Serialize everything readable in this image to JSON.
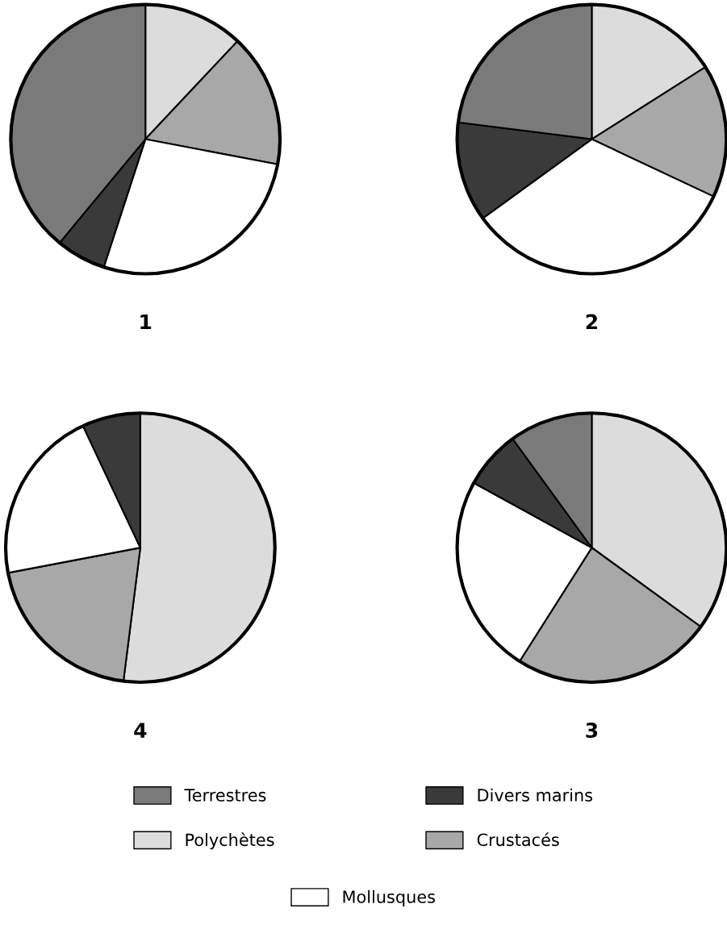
{
  "chart_data": [
    {
      "type": "pie",
      "title": "1",
      "categories": [
        "Polychètes",
        "Crustacés",
        "Mollusques",
        "Divers marins",
        "Terrestres"
      ],
      "values": [
        12,
        16,
        27,
        6,
        39
      ],
      "colors": [
        "#dcdcdc",
        "#a8a8a8",
        "#ffffff",
        "#3a3a3a",
        "#7a7a7a"
      ],
      "legend": "bottom"
    },
    {
      "type": "pie",
      "title": "2",
      "values": [
        16,
        16,
        33,
        12,
        23
      ],
      "colors": [
        "#dcdcdc",
        "#a8a8a8",
        "#ffffff",
        "#3a3a3a",
        "#7a7a7a"
      ]
    },
    {
      "type": "pie",
      "title": "4",
      "values": [
        52,
        20,
        21,
        7,
        0
      ],
      "colors": [
        "#dcdcdc",
        "#a8a8a8",
        "#ffffff",
        "#3a3a3a",
        "#7a7a7a"
      ]
    },
    {
      "type": "pie",
      "title": "3",
      "values": [
        35,
        24,
        24,
        7,
        10
      ],
      "colors": [
        "#dcdcdc",
        "#a8a8a8",
        "#ffffff",
        "#3a3a3a",
        "#7a7a7a"
      ]
    }
  ]
}
